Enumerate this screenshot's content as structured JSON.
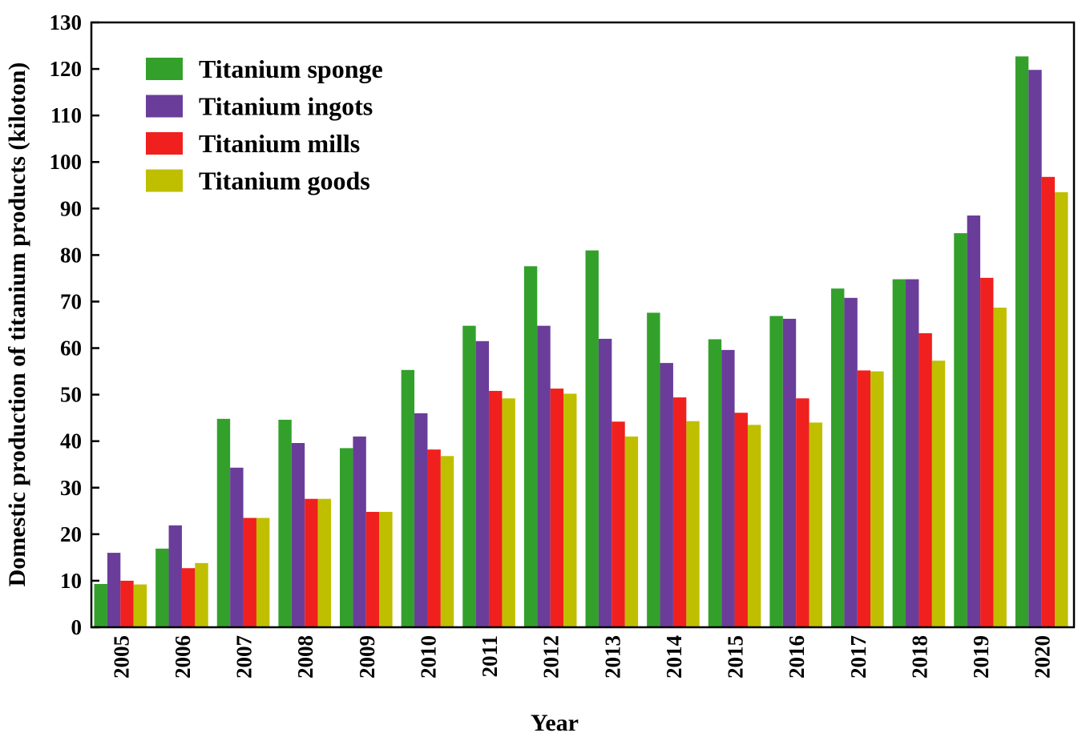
{
  "chart_data": {
    "type": "bar",
    "title": "",
    "xlabel": "Year",
    "ylabel": "Domestic production of titanium products (kiloton)",
    "ylim": [
      0,
      130
    ],
    "yticks": [
      0,
      10,
      20,
      30,
      40,
      50,
      60,
      70,
      80,
      90,
      100,
      110,
      120,
      130
    ],
    "ytick_labels": [
      "0",
      "10",
      "20",
      "30",
      "40",
      "50",
      "60",
      "70",
      "80",
      "90",
      "100",
      "110",
      "120",
      "130"
    ],
    "grid": false,
    "legend_position": "top-left",
    "categories": [
      "2005",
      "2006",
      "2007",
      "2008",
      "2009",
      "2010",
      "2011",
      "2012",
      "2013",
      "2014",
      "2015",
      "2016",
      "2017",
      "2018",
      "2019",
      "2020"
    ],
    "series": [
      {
        "name": "Titanium sponge",
        "color": "#33a02c",
        "values": [
          9.3,
          16.9,
          44.8,
          44.6,
          38.5,
          55.3,
          64.8,
          77.6,
          81.0,
          67.6,
          61.9,
          66.9,
          72.8,
          74.8,
          84.7,
          122.7
        ]
      },
      {
        "name": "Titanium ingots",
        "color": "#6a3d9a",
        "values": [
          16.0,
          21.9,
          34.3,
          39.6,
          41.0,
          46.0,
          61.5,
          64.8,
          62.0,
          56.8,
          59.6,
          66.3,
          70.8,
          74.8,
          88.5,
          119.8
        ]
      },
      {
        "name": "Titanium mills",
        "color": "#f0201e",
        "values": [
          10.0,
          12.7,
          23.5,
          27.6,
          24.8,
          38.2,
          50.8,
          51.3,
          44.2,
          49.4,
          46.1,
          49.2,
          55.2,
          63.2,
          75.1,
          96.8
        ]
      },
      {
        "name": "Titanium goods",
        "color": "#bfbf00",
        "values": [
          9.2,
          13.8,
          23.5,
          27.6,
          24.8,
          36.8,
          49.2,
          50.2,
          41.0,
          44.3,
          43.5,
          44.0,
          55.0,
          57.3,
          68.7,
          93.5
        ]
      }
    ]
  }
}
